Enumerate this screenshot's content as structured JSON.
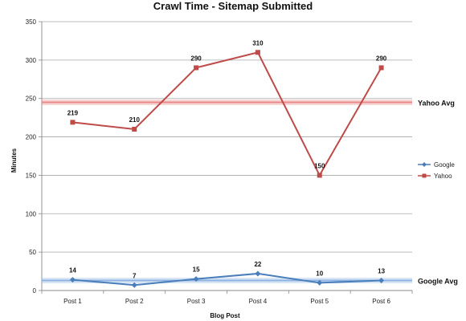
{
  "chart_data": {
    "type": "line",
    "title": "Crawl Time - Sitemap Submitted",
    "xlabel": "Blog Post",
    "ylabel": "Minutes",
    "categories": [
      "Post 1",
      "Post 2",
      "Post 3",
      "Post 4",
      "Post 5",
      "Post 6"
    ],
    "ylim": [
      0,
      350
    ],
    "yticks": [
      0,
      50,
      100,
      150,
      200,
      250,
      300,
      350
    ],
    "grid": true,
    "legend_position": "right",
    "series": [
      {
        "name": "Google",
        "values": [
          14,
          7,
          15,
          22,
          10,
          13
        ],
        "color": "#4a7ebb",
        "marker": "diamond",
        "labels": [
          "14",
          "7",
          "15",
          "22",
          "10",
          "13"
        ]
      },
      {
        "name": "Yahoo",
        "values": [
          219,
          210,
          290,
          310,
          150,
          290
        ],
        "color": "#be4b48",
        "marker": "square",
        "labels": [
          "219",
          "210",
          "290",
          "310",
          "150",
          "290"
        ]
      }
    ],
    "reference_lines": [
      {
        "label": "Yahoo Avg",
        "value": 245,
        "color": "#e8898a"
      },
      {
        "label": "Google Avg",
        "value": 13,
        "color": "#8fb4e3"
      }
    ]
  }
}
